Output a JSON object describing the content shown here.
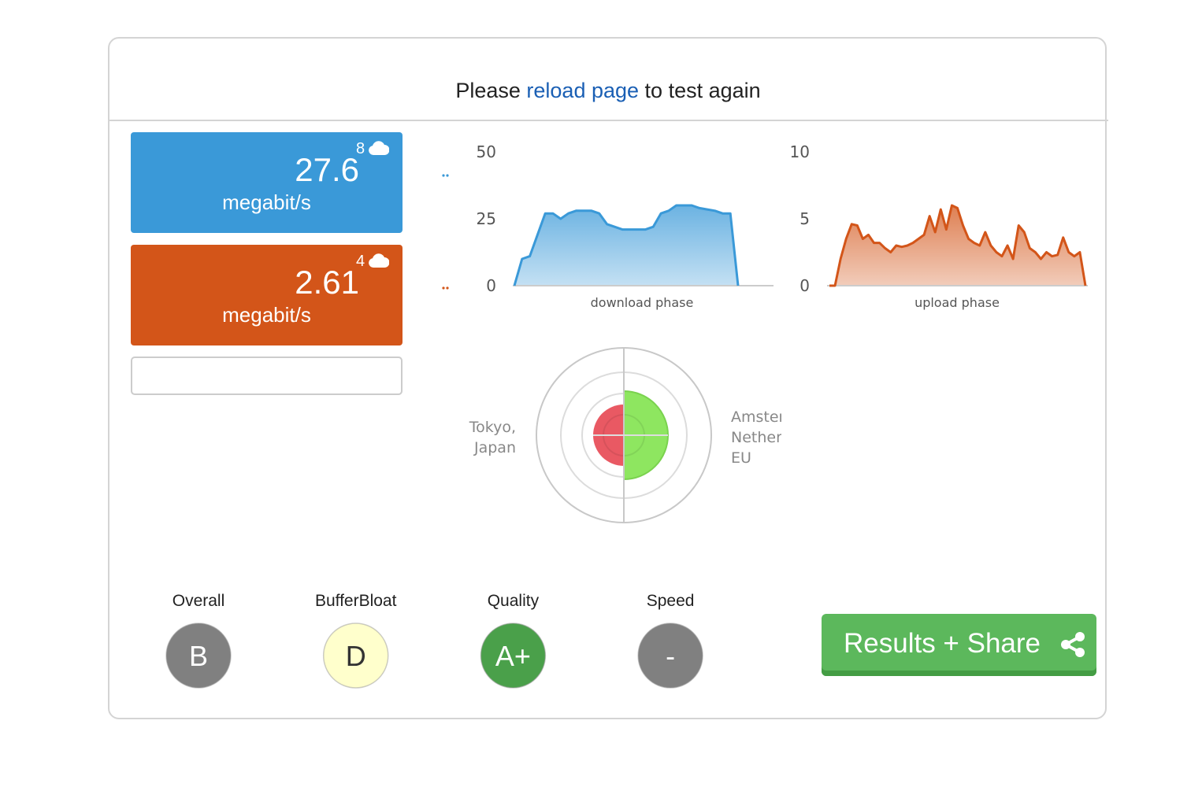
{
  "header": {
    "before": "Please",
    "link": "reload page",
    "after": "to test again"
  },
  "download": {
    "value": "27.6",
    "unit": "megabit/s",
    "streams": "8",
    "color": "#3a99d8"
  },
  "upload": {
    "value": "2.61",
    "unit": "megabit/s",
    "streams": "4",
    "color": "#d35519"
  },
  "chart_data": [
    {
      "type": "area",
      "x_label": "download phase",
      "color": "#3a99d8",
      "ylim": [
        0,
        50
      ],
      "yticks": [
        0,
        25,
        50
      ],
      "values": [
        0,
        10,
        11,
        19,
        27,
        27,
        25,
        27,
        28,
        28,
        28,
        27,
        23,
        22,
        21,
        21,
        21,
        21,
        22,
        27,
        28,
        30,
        30,
        30,
        29,
        28.5,
        28,
        27,
        27,
        0
      ]
    },
    {
      "type": "area",
      "x_label": "upload phase",
      "color": "#d35519",
      "ylim": [
        0,
        10
      ],
      "yticks": [
        0,
        5,
        10
      ],
      "values": [
        0,
        0,
        2,
        3.5,
        4.6,
        4.5,
        3.5,
        3.8,
        3.2,
        3.2,
        2.8,
        2.5,
        3.0,
        2.9,
        3.0,
        3.2,
        3.5,
        3.8,
        5.2,
        4.0,
        5.7,
        4.2,
        6.0,
        5.8,
        4.5,
        3.5,
        3.2,
        3.0,
        4.0,
        3.0,
        2.5,
        2.2,
        3.0,
        2.0,
        4.5,
        4.0,
        2.8,
        2.5,
        2.0,
        2.5,
        2.2,
        2.3,
        3.6,
        2.5,
        2.2,
        2.5,
        0
      ]
    }
  ],
  "servers": {
    "left": [
      "Tokyo,",
      "Japan"
    ],
    "right": [
      "Amster",
      "Nether",
      "EU"
    ]
  },
  "grades": [
    {
      "label": "Overall",
      "grade": "B",
      "color": "#808080",
      "text_color": "#ffffff"
    },
    {
      "label": "BufferBloat",
      "grade": "D",
      "color": "#ffffcc",
      "text_color": "#333333"
    },
    {
      "label": "Quality",
      "grade": "A+",
      "color": "#4aa04a",
      "text_color": "#ffffff"
    },
    {
      "label": "Speed",
      "grade": "-",
      "color": "#808080",
      "text_color": "#ffffff"
    }
  ],
  "button": "Results + Share"
}
